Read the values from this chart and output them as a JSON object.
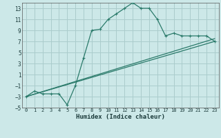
{
  "xlabel": "Humidex (Indice chaleur)",
  "bg_color": "#cce8e8",
  "grid_color": "#aacccc",
  "line_color": "#2a7a6a",
  "series1_x": [
    0,
    1,
    2,
    3,
    4,
    5,
    6,
    7,
    8,
    9,
    10,
    11,
    12,
    13,
    14,
    15,
    16,
    17,
    18,
    19,
    20,
    21,
    22,
    23
  ],
  "series1_y": [
    -3,
    -2,
    -2.5,
    -2.5,
    -2.5,
    -4.5,
    -1,
    4,
    9,
    9.2,
    11,
    12,
    13,
    14,
    13,
    13,
    11,
    8,
    8.5,
    8,
    8,
    8,
    8,
    7
  ],
  "series2_x": [
    0,
    23
  ],
  "series2_y": [
    -3,
    7.5
  ],
  "series3_x": [
    0,
    23
  ],
  "series3_y": [
    -3,
    7
  ],
  "xlim": [
    -0.5,
    23.5
  ],
  "ylim": [
    -5,
    14
  ],
  "xticks": [
    0,
    1,
    2,
    3,
    4,
    5,
    6,
    7,
    8,
    9,
    10,
    11,
    12,
    13,
    14,
    15,
    16,
    17,
    18,
    19,
    20,
    21,
    22,
    23
  ],
  "yticks": [
    -5,
    -3,
    -1,
    1,
    3,
    5,
    7,
    9,
    11,
    13
  ],
  "xlabel_fontsize": 6.5,
  "tick_fontsize_x": 5.0,
  "tick_fontsize_y": 5.5
}
